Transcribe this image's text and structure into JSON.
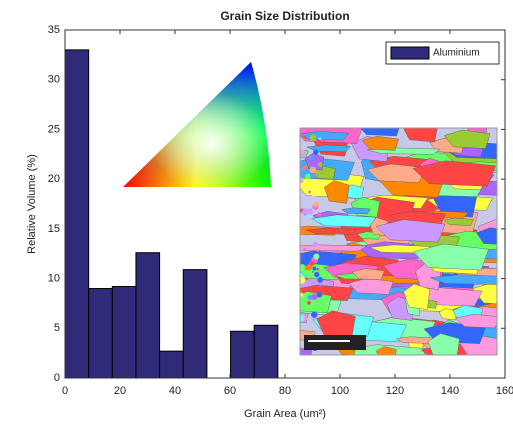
{
  "chart_data": {
    "type": "histogram",
    "title": "Grain Size Distribution",
    "x_label": "Grain Area (um²)",
    "y_label": "Relative Volume (%)",
    "bins": [
      0,
      8.6,
      17.2,
      25.8,
      34.4,
      43,
      51.6,
      60.2,
      68.8,
      77.4
    ],
    "series": [
      {
        "name": "Aluminium",
        "color": "#2f2b78",
        "values": [
          33,
          9,
          9.2,
          12.6,
          2.7,
          10.9,
          0,
          4.7,
          5.3
        ]
      }
    ],
    "xlim": [
      0,
      160
    ],
    "xticks": [
      0,
      20,
      40,
      60,
      80,
      100,
      120,
      140,
      160
    ],
    "ylim": [
      0,
      35
    ],
    "yticks": [
      0,
      5,
      10,
      15,
      20,
      25,
      30,
      35
    ],
    "grid": false,
    "legend": "upper right"
  }
}
